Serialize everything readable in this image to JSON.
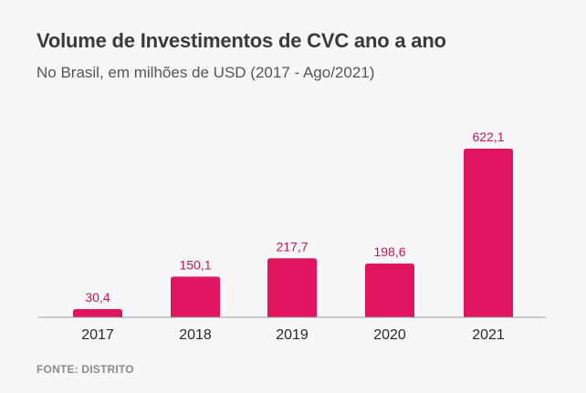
{
  "header": {
    "title": "Volume de Investimentos de CVC ano a ano",
    "subtitle": "No Brasil, em milhões de USD (2017 - Ago/2021)"
  },
  "footer": {
    "source": "FONTE: DISTRITO"
  },
  "colors": {
    "bar": "#e0145f",
    "value_label": "#c0185a",
    "axis": "#9a9a9a",
    "tick_label": "#2a2a2a"
  },
  "chart_data": {
    "type": "bar",
    "title": "Volume de Investimentos de CVC ano a ano",
    "subtitle": "No Brasil, em milhões de USD (2017 - Ago/2021)",
    "categories": [
      "2017",
      "2018",
      "2019",
      "2020",
      "2021"
    ],
    "values": [
      30.4,
      150.1,
      217.7,
      198.6,
      622.1
    ],
    "value_labels": [
      "30,4",
      "150,1",
      "217,7",
      "198,6",
      "622,1"
    ],
    "xlabel": "",
    "ylabel": "",
    "ylim": [
      0,
      622.1
    ],
    "grid": false,
    "legend": "none"
  }
}
